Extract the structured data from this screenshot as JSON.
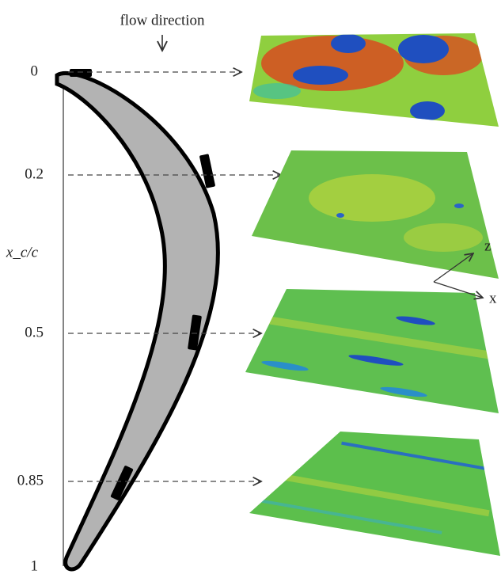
{
  "annotation": "flow direction",
  "axis_label": "x_c/c",
  "stations": [
    {
      "label": "0"
    },
    {
      "label": "0.2"
    },
    {
      "label": "0.5"
    },
    {
      "label": "0.85"
    },
    {
      "label": "1"
    }
  ],
  "coordinate_axes": {
    "z": "z",
    "x": "x"
  }
}
